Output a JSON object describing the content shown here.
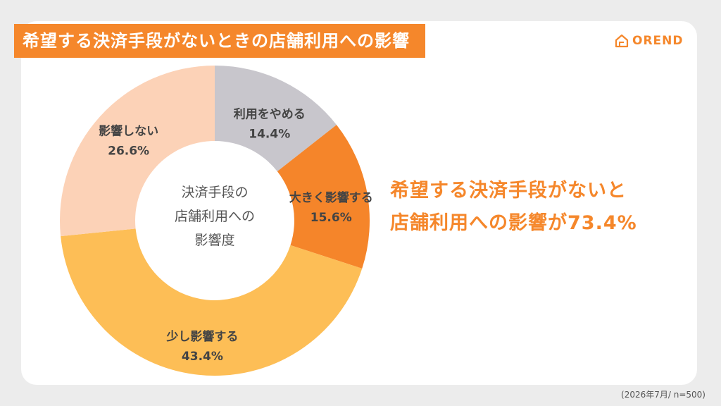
{
  "title": "希望する決済手段がないときの店舗利用への影響",
  "brand": {
    "name": "OREND",
    "icon": "house-logo-icon"
  },
  "headline": {
    "line1": "希望する決済手段がないと",
    "line2": "店舗利用への影響が73.4%"
  },
  "footnote": "(2026年7月/ n=500)",
  "colors": {
    "accent": "#f5872b",
    "background": "#ececec"
  },
  "chart_data": {
    "type": "pie",
    "variant": "donut",
    "center_label": [
      "決済手段の",
      "店舗利用への",
      "影響度"
    ],
    "unit": "%",
    "slices": [
      {
        "label": "利用をやめる",
        "value": 14.4,
        "value_label": "14.4%",
        "color": "#c8c6cc"
      },
      {
        "label": "大きく影響する",
        "value": 15.6,
        "value_label": "15.6%",
        "color": "#f5852a"
      },
      {
        "label": "少し影響する",
        "value": 43.4,
        "value_label": "43.4%",
        "color": "#fdbe56"
      },
      {
        "label": "影響しない",
        "value": 26.6,
        "value_label": "26.6%",
        "color": "#fcd2b7"
      }
    ]
  }
}
